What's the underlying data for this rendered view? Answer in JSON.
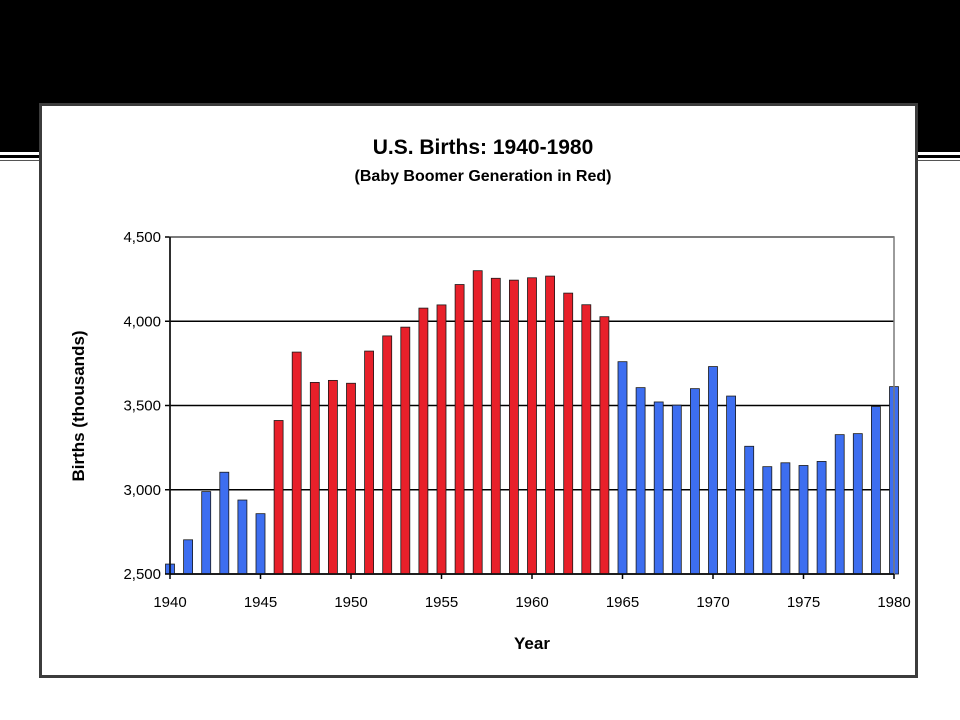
{
  "chart_data": {
    "type": "bar",
    "title": "U.S. Births: 1940-1980",
    "subtitle": "(Baby Boomer Generation in Red)",
    "xlabel": "Year",
    "ylabel": "Births (thousands)",
    "ylim": [
      2500,
      4500
    ],
    "yticks": [
      2500,
      3000,
      3500,
      4000,
      4500
    ],
    "ytick_labels": [
      "2,500",
      "3,000",
      "3,500",
      "4,000",
      "4,500"
    ],
    "xticks": [
      1940,
      1945,
      1950,
      1955,
      1960,
      1965,
      1970,
      1975,
      1980
    ],
    "grid": "horizontal",
    "colors": {
      "boomer": "#e8202a",
      "other": "#3d6ef0",
      "bar_outline": "#1a1a1a"
    },
    "boomer_years": [
      1946,
      1964
    ],
    "categories": [
      1940,
      1941,
      1942,
      1943,
      1944,
      1945,
      1946,
      1947,
      1948,
      1949,
      1950,
      1951,
      1952,
      1953,
      1954,
      1955,
      1956,
      1957,
      1958,
      1959,
      1960,
      1961,
      1962,
      1963,
      1964,
      1965,
      1966,
      1967,
      1968,
      1969,
      1970,
      1971,
      1972,
      1973,
      1974,
      1975,
      1976,
      1977,
      1978,
      1979,
      1980
    ],
    "values": [
      2559,
      2703,
      2989,
      3104,
      2939,
      2858,
      3411,
      3817,
      3637,
      3649,
      3632,
      3823,
      3913,
      3965,
      4078,
      4097,
      4218,
      4300,
      4255,
      4244,
      4258,
      4268,
      4167,
      4098,
      4027,
      3760,
      3606,
      3521,
      3502,
      3600,
      3731,
      3556,
      3258,
      3137,
      3160,
      3144,
      3168,
      3327,
      3333,
      3494,
      3612
    ]
  }
}
